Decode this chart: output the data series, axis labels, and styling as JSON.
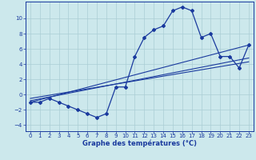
{
  "title": "Graphe des températures (°C)",
  "bg_color": "#cce8ec",
  "line_color": "#1a3a9e",
  "xlim": [
    -0.5,
    23.5
  ],
  "ylim": [
    -4.8,
    12.2
  ],
  "xticks": [
    0,
    1,
    2,
    3,
    4,
    5,
    6,
    7,
    8,
    9,
    10,
    11,
    12,
    13,
    14,
    15,
    16,
    17,
    18,
    19,
    20,
    21,
    22,
    23
  ],
  "yticks": [
    -4,
    -2,
    0,
    2,
    4,
    6,
    8,
    10
  ],
  "grid_color": "#aacdd4",
  "hours": [
    0,
    1,
    2,
    3,
    4,
    5,
    6,
    7,
    8,
    9,
    10,
    11,
    12,
    13,
    14,
    15,
    16,
    17,
    18,
    19,
    20,
    21,
    22,
    23
  ],
  "temp_curve": [
    -1,
    -1,
    -0.5,
    -1,
    -1.5,
    -2,
    -2.5,
    -3,
    -2.5,
    1,
    1,
    5,
    7.5,
    8.5,
    9,
    11,
    11.5,
    11,
    7.5,
    8,
    5,
    5,
    3.5,
    6.5
  ],
  "line1_x": [
    0,
    23
  ],
  "line1_y": [
    -1.0,
    6.5
  ],
  "line2_x": [
    0,
    23
  ],
  "line2_y": [
    -0.8,
    4.8
  ],
  "line3_x": [
    0,
    23
  ],
  "line3_y": [
    -0.5,
    4.3
  ],
  "xlabel_fontsize": 6.0,
  "tick_fontsize": 5.0
}
